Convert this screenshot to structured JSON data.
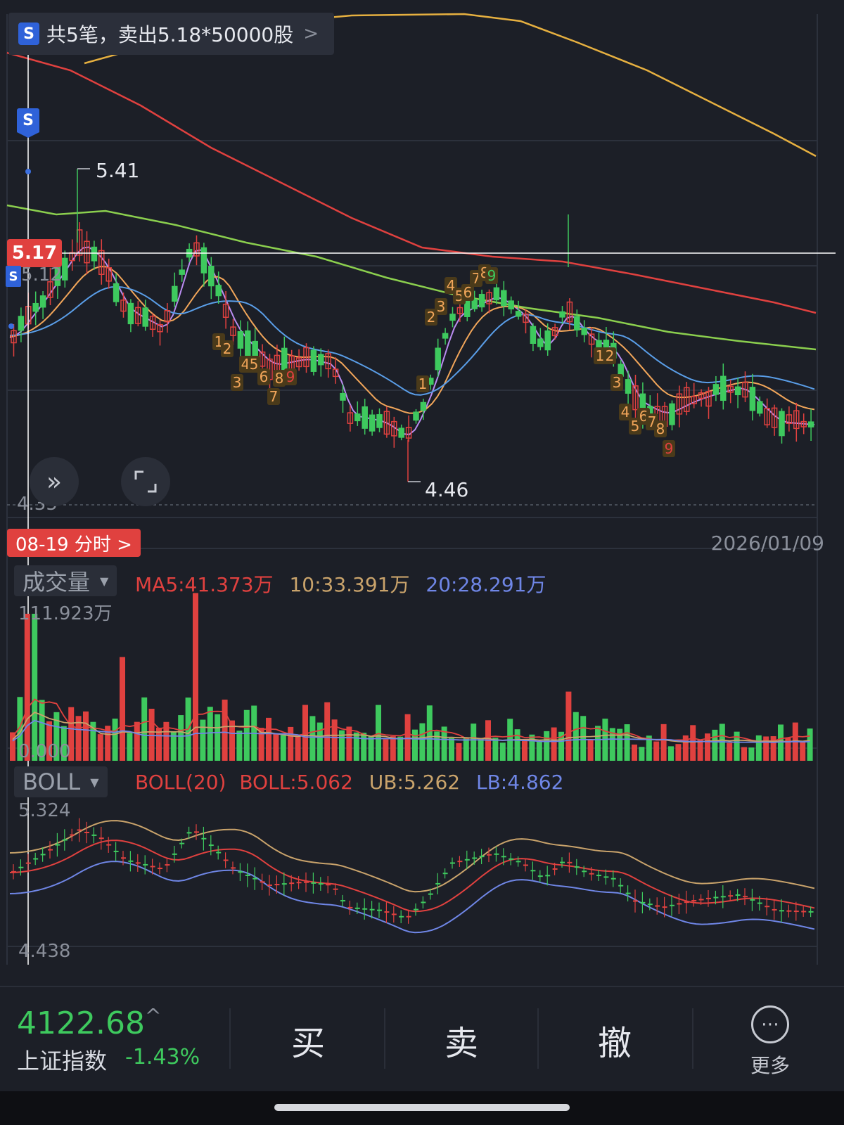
{
  "trade_banner": {
    "badge": "S",
    "text": "共5笔，卖出5.18*50000股",
    "chevron": ">"
  },
  "price_chart": {
    "high_label": "5.41",
    "low_label": "4.46",
    "current_price_tag": "5.17",
    "partial_price": "5.12",
    "y_bottom_label": "4.35",
    "marker_badge": "S",
    "td_numbers": [
      "1",
      "2",
      "3",
      "4",
      "5",
      "6",
      "7",
      "8",
      "9",
      "1",
      "2",
      "3",
      "4",
      "5",
      "6",
      "7",
      "8",
      "9",
      "1",
      "2",
      "3",
      "4",
      "5",
      "6",
      "7",
      "8",
      "9"
    ]
  },
  "date_bar": {
    "tab_label": "08-19 分时 >",
    "end_date": "2026/01/09"
  },
  "volume_panel": {
    "selector": "成交量",
    "ma5": "MA5:41.373万",
    "ma10": "10:33.391万",
    "ma20": "20:28.291万",
    "max_label": "111.923万",
    "min_label": "0.000"
  },
  "boll_panel": {
    "selector": "BOLL",
    "title": "BOLL(20)",
    "boll": "BOLL:5.062",
    "ub": "UB:5.262",
    "lb": "LB:4.862",
    "max_label": "5.324",
    "min_label": "4.438"
  },
  "bottom_bar": {
    "index_price": "4122.68",
    "index_arrow": "^",
    "index_name": "上证指数",
    "index_change": "-1.43%",
    "buy": "买",
    "sell": "卖",
    "cancel": "撤",
    "more": "更多"
  },
  "colors": {
    "up": "#e0413f",
    "down": "#3ec95e",
    "ma5": "#b98cf0",
    "ma10": "#f2a65a",
    "ma20": "#5a9ee8",
    "ma60": "#e0413f",
    "ma120": "#8bcf4e",
    "ma250": "#e6b040",
    "boll_mid": "#e0413f",
    "boll_ub": "#c9a36b",
    "boll_lb": "#6f86e6",
    "vol_ma10": "#c9a36b",
    "vol_ma20": "#6f86e6"
  },
  "chart_data": {
    "type": "candlestick",
    "y_range": [
      4.35,
      5.41
    ],
    "high": 5.41,
    "low": 4.46,
    "last_close": 5.17,
    "indicators": [
      "MA5",
      "MA10",
      "MA20",
      "MA60",
      "MA120",
      "MA250"
    ],
    "volume_unit": "万",
    "volume_range": [
      0.0,
      111.923
    ],
    "boll_range": [
      4.438,
      5.324
    ],
    "end_date": "2026/01/09"
  }
}
